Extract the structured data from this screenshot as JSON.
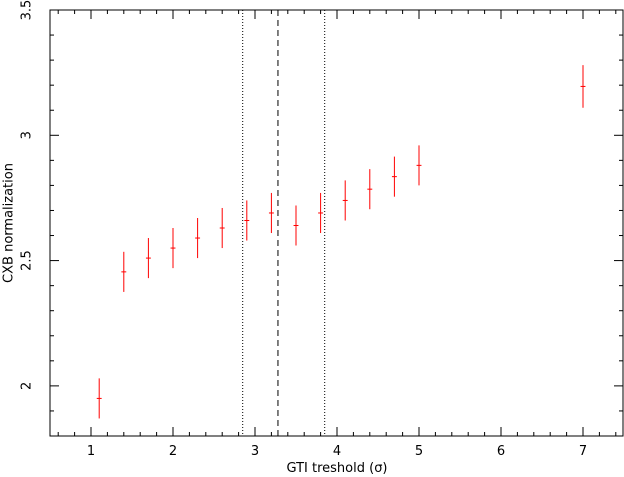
{
  "chart_data": {
    "type": "scatter",
    "xlabel": "GTI treshold (σ)",
    "ylabel": "CXB normalization",
    "xlim": [
      0.5,
      7.5
    ],
    "ylim": [
      1.8,
      3.5
    ],
    "x_ticks": [
      1,
      2,
      3,
      4,
      5,
      6,
      7
    ],
    "y_ticks": [
      2,
      2.5,
      3,
      3.5
    ],
    "y_tick_labels": [
      "2",
      "2.5",
      "3",
      "3.5"
    ],
    "grid": false,
    "series": [
      {
        "color": "#ff0000",
        "marker": "plus",
        "points": [
          {
            "x": 1.1,
            "y": 1.95,
            "xerr": 0.03,
            "yerr": 0.08
          },
          {
            "x": 1.4,
            "y": 2.455,
            "xerr": 0.03,
            "yerr": 0.08
          },
          {
            "x": 1.7,
            "y": 2.51,
            "xerr": 0.03,
            "yerr": 0.08
          },
          {
            "x": 2.0,
            "y": 2.55,
            "xerr": 0.03,
            "yerr": 0.08
          },
          {
            "x": 2.3,
            "y": 2.59,
            "xerr": 0.03,
            "yerr": 0.08
          },
          {
            "x": 2.6,
            "y": 2.63,
            "xerr": 0.03,
            "yerr": 0.08
          },
          {
            "x": 2.9,
            "y": 2.66,
            "xerr": 0.03,
            "yerr": 0.08
          },
          {
            "x": 3.2,
            "y": 2.69,
            "xerr": 0.03,
            "yerr": 0.08
          },
          {
            "x": 3.5,
            "y": 2.64,
            "xerr": 0.03,
            "yerr": 0.08
          },
          {
            "x": 3.8,
            "y": 2.69,
            "xerr": 0.03,
            "yerr": 0.08
          },
          {
            "x": 4.1,
            "y": 2.74,
            "xerr": 0.03,
            "yerr": 0.08
          },
          {
            "x": 4.4,
            "y": 2.785,
            "xerr": 0.03,
            "yerr": 0.08
          },
          {
            "x": 4.7,
            "y": 2.835,
            "xerr": 0.03,
            "yerr": 0.08
          },
          {
            "x": 5.0,
            "y": 2.88,
            "xerr": 0.03,
            "yerr": 0.08
          },
          {
            "x": 7.0,
            "y": 3.195,
            "xerr": 0.03,
            "yerr": 0.085
          }
        ]
      }
    ],
    "vertical_lines": [
      {
        "x": 2.85,
        "style": "dotted"
      },
      {
        "x": 3.28,
        "style": "dashed"
      },
      {
        "x": 3.85,
        "style": "dotted"
      }
    ]
  }
}
